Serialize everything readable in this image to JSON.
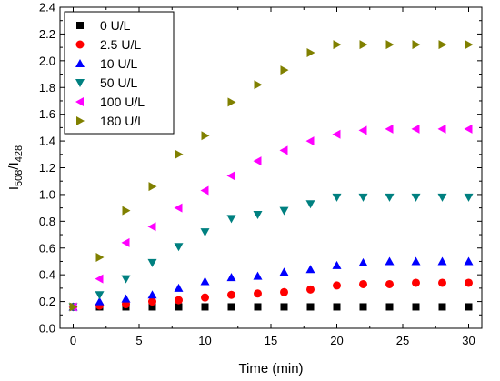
{
  "chart_data": {
    "type": "scatter",
    "xlabel": "Time (min)",
    "ylabel": {
      "base": "I",
      "sub1": "508",
      "sep": "/I",
      "sub2": "428"
    },
    "xlim": [
      -1,
      31
    ],
    "ylim": [
      0.0,
      2.4
    ],
    "xticks": [
      0,
      5,
      10,
      15,
      20,
      25,
      30
    ],
    "yticks": [
      0.0,
      0.2,
      0.4,
      0.6,
      0.8,
      1.0,
      1.2,
      1.4,
      1.6,
      1.8,
      2.0,
      2.2,
      2.4
    ],
    "xtick_labels": [
      "0",
      "5",
      "10",
      "15",
      "20",
      "25",
      "30"
    ],
    "ytick_labels": [
      "0.0",
      "0.2",
      "0.4",
      "0.6",
      "0.8",
      "1.0",
      "1.2",
      "1.4",
      "1.6",
      "1.8",
      "2.0",
      "2.2",
      "2.4"
    ],
    "legend_position": "top-left",
    "grid": false,
    "x": [
      0,
      2,
      4,
      6,
      8,
      10,
      12,
      14,
      16,
      18,
      20,
      22,
      24,
      26,
      28,
      30
    ],
    "series": [
      {
        "name": "0 U/L",
        "marker": "square",
        "color": "#000000",
        "values": [
          0.16,
          0.16,
          0.16,
          0.16,
          0.16,
          0.16,
          0.16,
          0.16,
          0.16,
          0.16,
          0.16,
          0.16,
          0.16,
          0.16,
          0.16,
          0.16
        ]
      },
      {
        "name": "2.5 U/L",
        "marker": "circle",
        "color": "#ff0000",
        "values": [
          0.16,
          0.17,
          0.18,
          0.2,
          0.21,
          0.23,
          0.25,
          0.26,
          0.27,
          0.29,
          0.32,
          0.33,
          0.33,
          0.34,
          0.34,
          0.34
        ]
      },
      {
        "name": "10 U/L",
        "marker": "triangle-up",
        "color": "#0000ff",
        "values": [
          0.16,
          0.2,
          0.22,
          0.25,
          0.3,
          0.35,
          0.38,
          0.39,
          0.42,
          0.44,
          0.47,
          0.49,
          0.5,
          0.5,
          0.5,
          0.5
        ]
      },
      {
        "name": "50 U/L",
        "marker": "triangle-down",
        "color": "#008080",
        "values": [
          0.16,
          0.25,
          0.37,
          0.49,
          0.61,
          0.72,
          0.82,
          0.85,
          0.88,
          0.93,
          0.98,
          0.98,
          0.98,
          0.98,
          0.98,
          0.98
        ]
      },
      {
        "name": "100 U/L",
        "marker": "triangle-left",
        "color": "#ff00ff",
        "values": [
          0.16,
          0.37,
          0.64,
          0.76,
          0.9,
          1.03,
          1.14,
          1.25,
          1.33,
          1.4,
          1.45,
          1.48,
          1.49,
          1.49,
          1.49,
          1.49
        ]
      },
      {
        "name": "180 U/L",
        "marker": "triangle-right",
        "color": "#808000",
        "values": [
          0.16,
          0.53,
          0.88,
          1.06,
          1.3,
          1.44,
          1.69,
          1.82,
          1.93,
          2.06,
          2.12,
          2.12,
          2.12,
          2.12,
          2.12,
          2.12
        ]
      }
    ]
  }
}
